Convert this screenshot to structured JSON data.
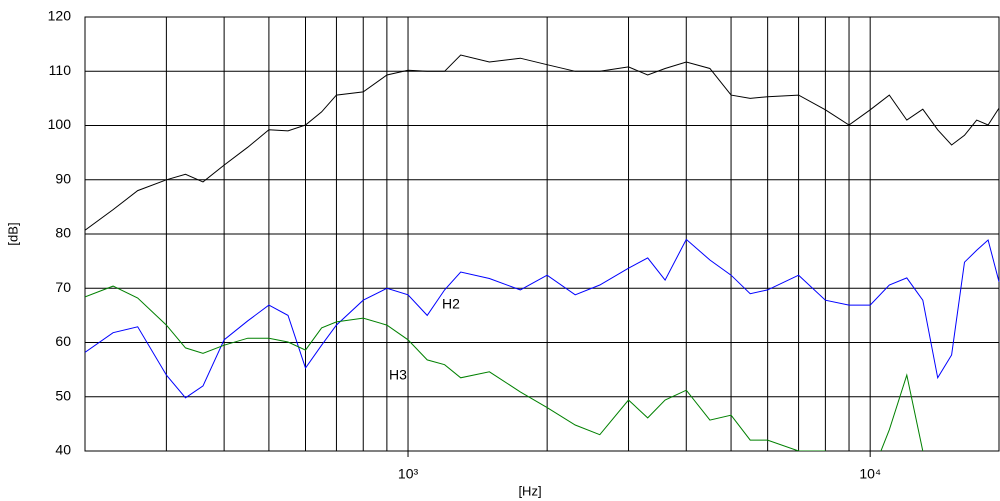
{
  "chart_data": {
    "type": "line",
    "xscale": "log",
    "xlabel": "[Hz]",
    "ylabel": "[dB]",
    "xlim": [
      200,
      19000
    ],
    "ylim": [
      40,
      120
    ],
    "xticks": [
      {
        "value": 1000,
        "label": "10³"
      },
      {
        "value": 10000,
        "label": "10⁴"
      }
    ],
    "yticks": [
      40,
      50,
      60,
      70,
      80,
      90,
      100,
      110,
      120
    ],
    "xgrid": [
      300,
      400,
      500,
      600,
      700,
      800,
      900,
      1000,
      2000,
      3000,
      4000,
      5000,
      6000,
      7000,
      8000,
      9000,
      10000
    ],
    "grid": true,
    "x": [
      200,
      230,
      260,
      300,
      330,
      360,
      400,
      450,
      500,
      550,
      600,
      650,
      700,
      800,
      900,
      1000,
      1100,
      1200,
      1300,
      1500,
      1750,
      2000,
      2300,
      2600,
      3000,
      3300,
      3600,
      4000,
      4500,
      5000,
      5500,
      6000,
      7000,
      8000,
      9000,
      10000,
      11000,
      12000,
      13000,
      14000,
      15000,
      16000,
      17000,
      18000,
      19000
    ],
    "series": [
      {
        "color": "#000000",
        "values": [
          80.7,
          84.5,
          88,
          90,
          91,
          89.6,
          92.7,
          96,
          99.2,
          99,
          100.1,
          102.5,
          105.6,
          106.2,
          109.3,
          110.2,
          110,
          110,
          113,
          111.7,
          112.4,
          111.2,
          110,
          110,
          110.8,
          109.3,
          110.5,
          111.7,
          110.5,
          105.6,
          105,
          105.3,
          105.6,
          102.9,
          100.1,
          102.9,
          105.6,
          101,
          103,
          99.2,
          96.4,
          98.2,
          101,
          100.1,
          103.2
        ]
      },
      {
        "name": "H2",
        "color": "#0000ff",
        "values": [
          58.2,
          61.8,
          62.9,
          54,
          49.8,
          52,
          60.5,
          64,
          66.9,
          65,
          55.3,
          59.5,
          63.2,
          67.8,
          70,
          68.8,
          65,
          69.7,
          73,
          71.8,
          69.7,
          72.4,
          68.8,
          70.6,
          73.7,
          75.6,
          71.5,
          79,
          75.2,
          72.4,
          69,
          69.7,
          72.4,
          67.8,
          66.9,
          66.9,
          70.6,
          71.9,
          67.8,
          53.5,
          57.7,
          74.8,
          77,
          78.9,
          71.2
        ]
      },
      {
        "name": "H3",
        "color": "#008000",
        "values": [
          68.4,
          70.4,
          68.2,
          63.2,
          59,
          58,
          59.5,
          60.8,
          60.8,
          60.1,
          58.6,
          62.7,
          63.8,
          64.5,
          63.2,
          60.5,
          56.8,
          55.9,
          53.5,
          54.6,
          50.9,
          48,
          44.8,
          43,
          49.4,
          46.1,
          49.4,
          51.2,
          45.7,
          46.6,
          42,
          42,
          40,
          40,
          36,
          35,
          43.9,
          54,
          40,
          35,
          35,
          35,
          35,
          35,
          35
        ]
      }
    ]
  }
}
